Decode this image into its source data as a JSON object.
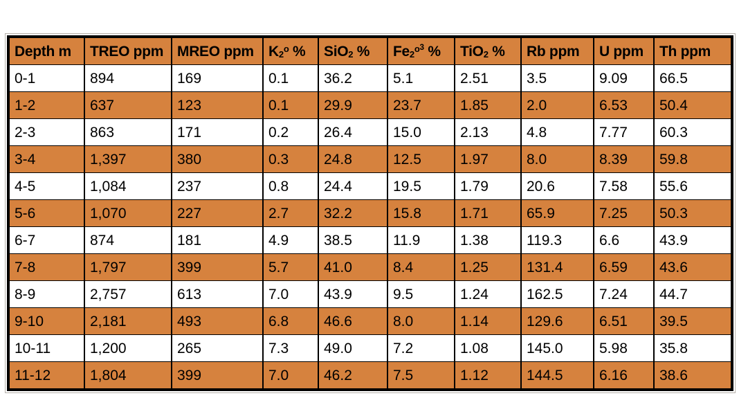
{
  "colors": {
    "stripe_orange": "#D6823E",
    "header_orange": "#D6823E",
    "row_white": "#FFFFFF",
    "border_black": "#000000",
    "text_black": "#000000"
  },
  "header_parts": [
    {
      "id": "depth",
      "parts": [
        [
          "n",
          "Depth m"
        ]
      ]
    },
    {
      "id": "treo",
      "parts": [
        [
          "n",
          "TREO ppm"
        ]
      ]
    },
    {
      "id": "mreo",
      "parts": [
        [
          "n",
          "MREO ppm"
        ]
      ]
    },
    {
      "id": "k2o",
      "parts": [
        [
          "n",
          "K"
        ],
        [
          "sub",
          "2"
        ],
        [
          "sup",
          "o"
        ],
        [
          "n",
          " %"
        ]
      ]
    },
    {
      "id": "sio2",
      "parts": [
        [
          "n",
          "SiO"
        ],
        [
          "sub",
          "2"
        ],
        [
          "n",
          " %"
        ]
      ]
    },
    {
      "id": "fe2o3",
      "parts": [
        [
          "n",
          "Fe"
        ],
        [
          "sub",
          "2"
        ],
        [
          "sup",
          "o"
        ],
        [
          "sup2",
          "3"
        ],
        [
          "n",
          " %"
        ]
      ]
    },
    {
      "id": "tio2",
      "parts": [
        [
          "n",
          "TiO"
        ],
        [
          "sub",
          "2"
        ],
        [
          "n",
          " %"
        ]
      ]
    },
    {
      "id": "rb",
      "parts": [
        [
          "n",
          "Rb ppm"
        ]
      ]
    },
    {
      "id": "u",
      "parts": [
        [
          "n",
          "U ppm"
        ]
      ]
    },
    {
      "id": "th",
      "parts": [
        [
          "n",
          "Th ppm"
        ]
      ]
    }
  ],
  "chart_data": {
    "type": "table",
    "title": "",
    "columns": [
      "Depth m",
      "TREO ppm",
      "MREO ppm",
      "K2o %",
      "SiO2 %",
      "Fe2o3 %",
      "TiO2 %",
      "Rb ppm",
      "U ppm",
      "Th ppm"
    ],
    "rows": [
      [
        "0-1",
        "894",
        "169",
        "0.1",
        "36.2",
        "5.1",
        "2.51",
        "3.5",
        "9.09",
        "66.5"
      ],
      [
        "1-2",
        "637",
        "123",
        "0.1",
        "29.9",
        "23.7",
        "1.85",
        "2.0",
        "6.53",
        "50.4"
      ],
      [
        "2-3",
        "863",
        "171",
        "0.2",
        "26.4",
        "15.0",
        "2.13",
        "4.8",
        "7.77",
        "60.3"
      ],
      [
        "3-4",
        "1,397",
        "380",
        "0.3",
        "24.8",
        "12.5",
        "1.97",
        "8.0",
        "8.39",
        "59.8"
      ],
      [
        "4-5",
        "1,084",
        "237",
        "0.8",
        "24.4",
        "19.5",
        "1.79",
        "20.6",
        "7.58",
        "55.6"
      ],
      [
        "5-6",
        "1,070",
        "227",
        "2.7",
        "32.2",
        "15.8",
        "1.71",
        "65.9",
        "7.25",
        "50.3"
      ],
      [
        "6-7",
        "874",
        "181",
        "4.9",
        "38.5",
        "11.9",
        "1.38",
        "119.3",
        "6.6",
        "43.9"
      ],
      [
        "7-8",
        "1,797",
        "399",
        "5.7",
        "41.0",
        "8.4",
        "1.25",
        "131.4",
        "6.59",
        "43.6"
      ],
      [
        "8-9",
        "2,757",
        "613",
        "7.0",
        "43.9",
        "9.5",
        "1.24",
        "162.5",
        "7.24",
        "44.7"
      ],
      [
        "9-10",
        "2,181",
        "493",
        "6.8",
        "46.6",
        "8.0",
        "1.14",
        "129.6",
        "6.51",
        "39.5"
      ],
      [
        "10-11",
        "1,200",
        "265",
        "7.3",
        "49.0",
        "7.2",
        "1.08",
        "145.0",
        "5.98",
        "35.8"
      ],
      [
        "11-12",
        "1,804",
        "399",
        "7.0",
        "46.2",
        "7.5",
        "1.12",
        "144.5",
        "6.16",
        "38.6"
      ]
    ],
    "layout": {
      "striped": true,
      "stripe_rows_orange_zero_based": [
        1,
        3,
        5,
        7,
        9,
        11
      ],
      "header_background": "#D6823E",
      "grid": true,
      "legend": false
    }
  }
}
